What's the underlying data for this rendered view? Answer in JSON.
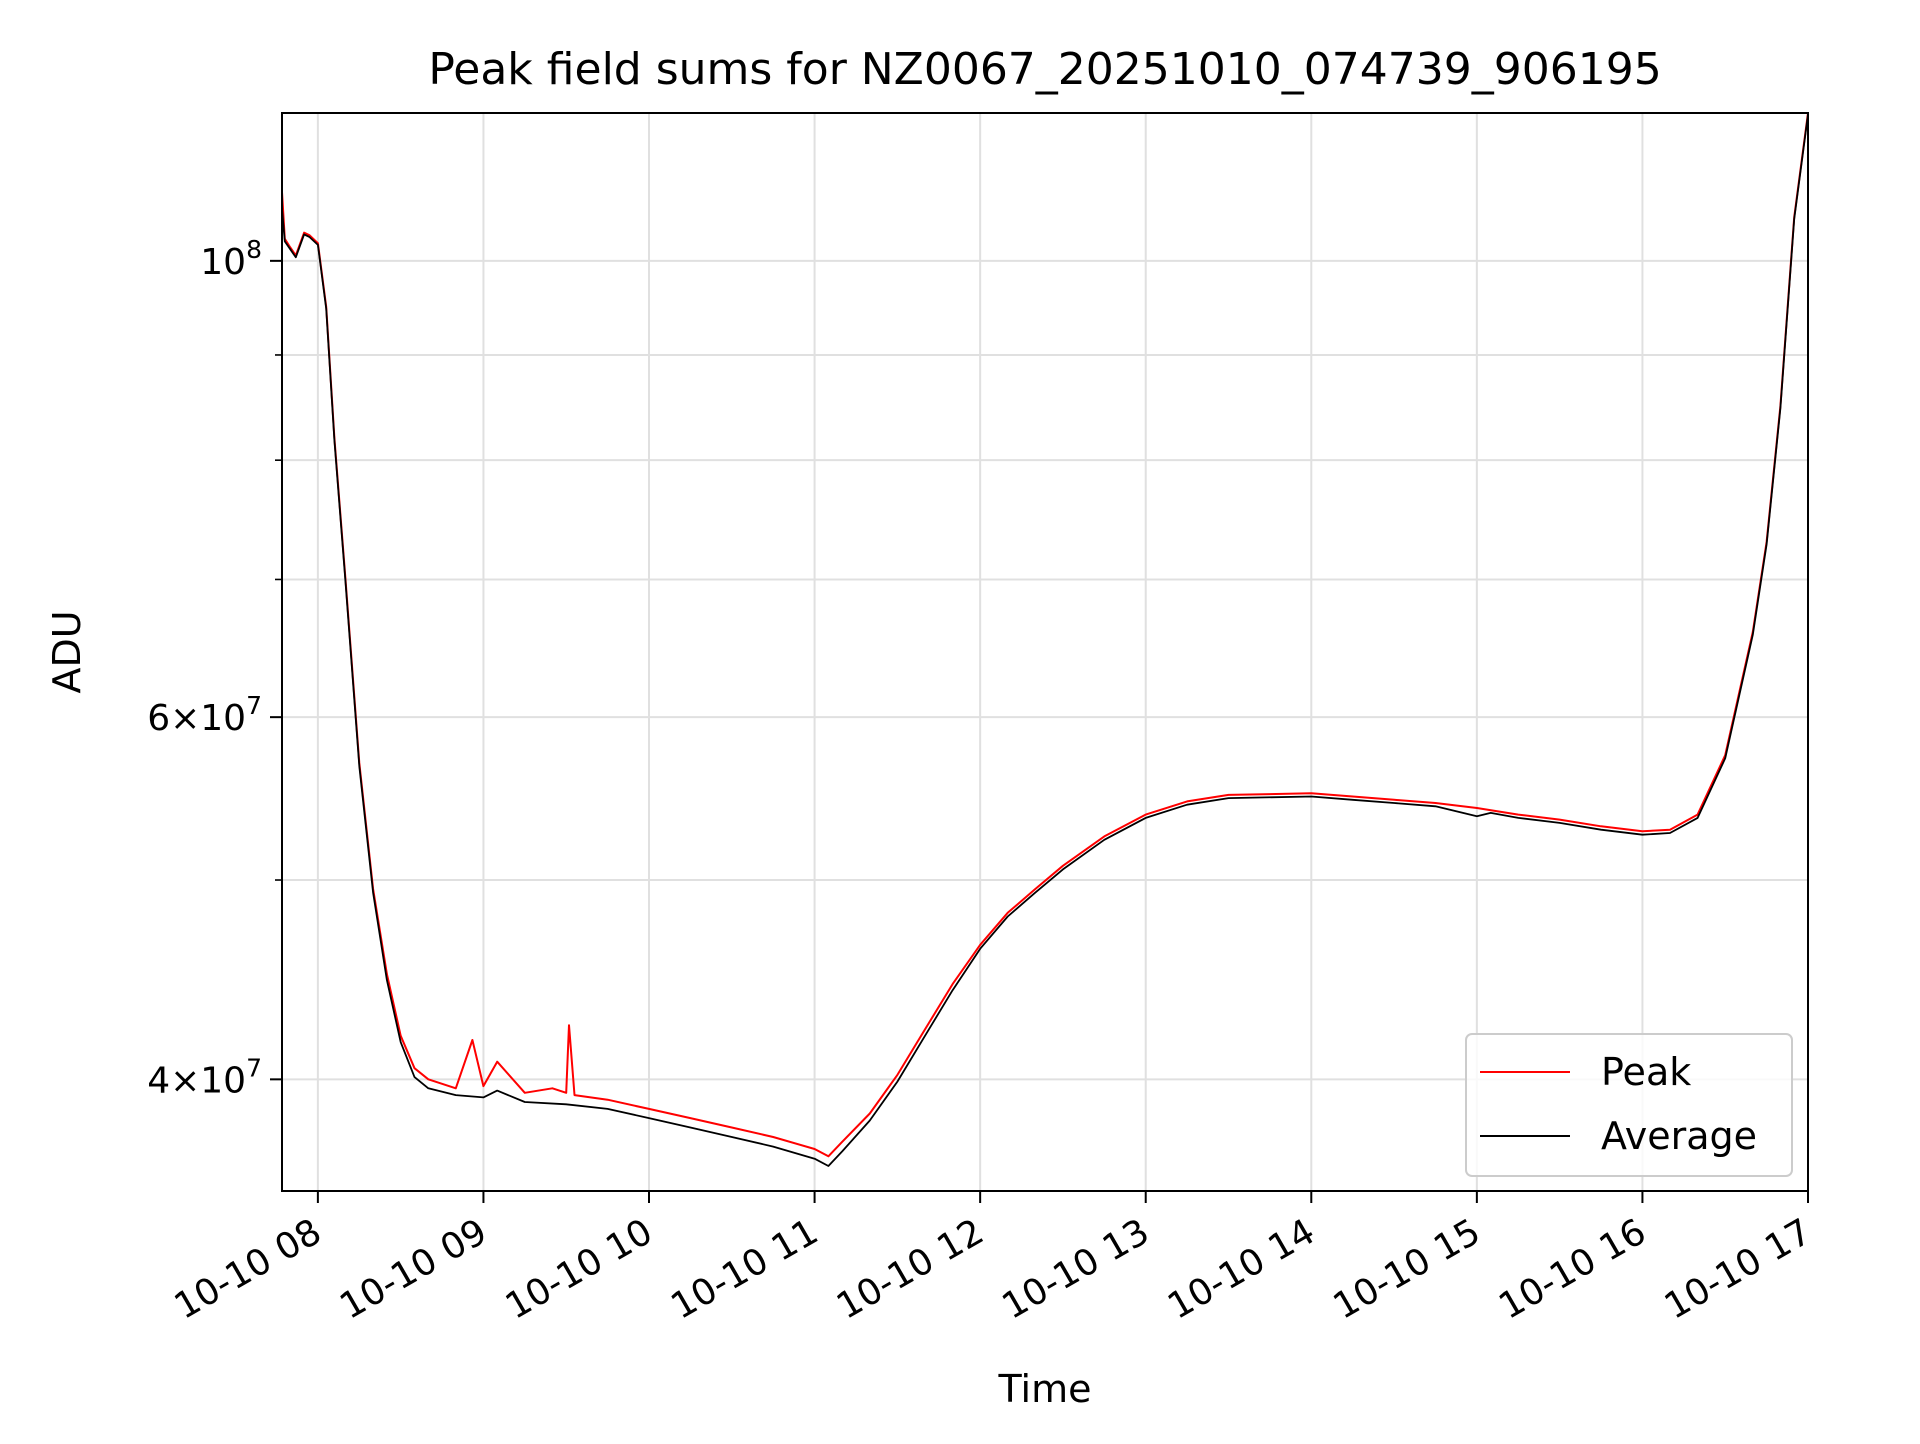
{
  "chart_data": {
    "type": "line",
    "title": "Peak field sums for NZ0067_20251010_074739_906195",
    "xlabel": "Time",
    "ylabel": "ADU",
    "yscale": "log",
    "xlim": [
      "2025-10-10T07:47:00",
      "2025-10-10T17:00:00"
    ],
    "ylim": [
      35300000,
      118000000
    ],
    "x_ticks": [
      {
        "t": "2025-10-10T08:00",
        "label": "10-10 08"
      },
      {
        "t": "2025-10-10T09:00",
        "label": "10-10 09"
      },
      {
        "t": "2025-10-10T10:00",
        "label": "10-10 10"
      },
      {
        "t": "2025-10-10T11:00",
        "label": "10-10 11"
      },
      {
        "t": "2025-10-10T12:00",
        "label": "10-10 12"
      },
      {
        "t": "2025-10-10T13:00",
        "label": "10-10 13"
      },
      {
        "t": "2025-10-10T14:00",
        "label": "10-10 14"
      },
      {
        "t": "2025-10-10T15:00",
        "label": "10-10 15"
      },
      {
        "t": "2025-10-10T16:00",
        "label": "10-10 16"
      },
      {
        "t": "2025-10-10T17:00",
        "label": "10-10 17"
      }
    ],
    "y_major_ticks": [
      {
        "v": 40000000,
        "mant": "4",
        "exp": "7"
      },
      {
        "v": 60000000,
        "mant": "6",
        "exp": "7"
      },
      {
        "v": 100000000,
        "mant": "",
        "exp": "8"
      }
    ],
    "y_minor_ticks": [
      50000000,
      70000000,
      80000000,
      90000000
    ],
    "grid": true,
    "legend_position": "lower-right",
    "series": [
      {
        "name": "Peak",
        "color": "#ff0000",
        "points": [
          [
            "2025-10-10T07:47",
            108000000
          ],
          [
            "2025-10-10T07:48",
            102500000
          ],
          [
            "2025-10-10T07:50",
            101500000
          ],
          [
            "2025-10-10T07:52",
            100600000
          ],
          [
            "2025-10-10T07:55",
            103200000
          ],
          [
            "2025-10-10T07:57",
            102900000
          ],
          [
            "2025-10-10T08:00",
            102000000
          ],
          [
            "2025-10-10T08:03",
            95000000
          ],
          [
            "2025-10-10T08:06",
            82000000
          ],
          [
            "2025-10-10T08:10",
            70000000
          ],
          [
            "2025-10-10T08:15",
            57000000
          ],
          [
            "2025-10-10T08:20",
            49500000
          ],
          [
            "2025-10-10T08:25",
            45000000
          ],
          [
            "2025-10-10T08:30",
            42000000
          ],
          [
            "2025-10-10T08:35",
            40500000
          ],
          [
            "2025-10-10T08:40",
            40000000
          ],
          [
            "2025-10-10T08:50",
            39600000
          ],
          [
            "2025-10-10T08:56",
            41800000
          ],
          [
            "2025-10-10T09:00",
            39700000
          ],
          [
            "2025-10-10T09:05",
            40800000
          ],
          [
            "2025-10-10T09:15",
            39400000
          ],
          [
            "2025-10-10T09:25",
            39600000
          ],
          [
            "2025-10-10T09:30",
            39400000
          ],
          [
            "2025-10-10T09:31",
            42500000
          ],
          [
            "2025-10-10T09:33",
            39300000
          ],
          [
            "2025-10-10T09:45",
            39100000
          ],
          [
            "2025-10-10T10:00",
            38700000
          ],
          [
            "2025-10-10T10:15",
            38300000
          ],
          [
            "2025-10-10T10:30",
            37900000
          ],
          [
            "2025-10-10T10:45",
            37500000
          ],
          [
            "2025-10-10T11:00",
            37000000
          ],
          [
            "2025-10-10T11:05",
            36700000
          ],
          [
            "2025-10-10T11:10",
            37300000
          ],
          [
            "2025-10-10T11:20",
            38500000
          ],
          [
            "2025-10-10T11:30",
            40200000
          ],
          [
            "2025-10-10T11:40",
            42300000
          ],
          [
            "2025-10-10T11:50",
            44500000
          ],
          [
            "2025-10-10T12:00",
            46500000
          ],
          [
            "2025-10-10T12:10",
            48200000
          ],
          [
            "2025-10-10T12:20",
            49500000
          ],
          [
            "2025-10-10T12:30",
            50800000
          ],
          [
            "2025-10-10T12:45",
            52500000
          ],
          [
            "2025-10-10T13:00",
            53800000
          ],
          [
            "2025-10-10T13:15",
            54600000
          ],
          [
            "2025-10-10T13:30",
            55000000
          ],
          [
            "2025-10-10T14:00",
            55100000
          ],
          [
            "2025-10-10T14:15",
            54900000
          ],
          [
            "2025-10-10T14:30",
            54700000
          ],
          [
            "2025-10-10T14:45",
            54500000
          ],
          [
            "2025-10-10T15:00",
            54200000
          ],
          [
            "2025-10-10T15:15",
            53800000
          ],
          [
            "2025-10-10T15:30",
            53500000
          ],
          [
            "2025-10-10T15:45",
            53100000
          ],
          [
            "2025-10-10T16:00",
            52800000
          ],
          [
            "2025-10-10T16:10",
            52900000
          ],
          [
            "2025-10-10T16:20",
            53800000
          ],
          [
            "2025-10-10T16:30",
            57500000
          ],
          [
            "2025-10-10T16:40",
            66000000
          ],
          [
            "2025-10-10T16:45",
            73000000
          ],
          [
            "2025-10-10T16:50",
            85000000
          ],
          [
            "2025-10-10T16:55",
            105000000
          ],
          [
            "2025-10-10T17:00",
            118000000
          ]
        ]
      },
      {
        "name": "Average",
        "color": "#000000",
        "points": [
          [
            "2025-10-10T07:47",
            106000000
          ],
          [
            "2025-10-10T07:48",
            102200000
          ],
          [
            "2025-10-10T07:50",
            101300000
          ],
          [
            "2025-10-10T07:52",
            100400000
          ],
          [
            "2025-10-10T07:55",
            103000000
          ],
          [
            "2025-10-10T07:57",
            102700000
          ],
          [
            "2025-10-10T08:00",
            101800000
          ],
          [
            "2025-10-10T08:03",
            94800000
          ],
          [
            "2025-10-10T08:06",
            81800000
          ],
          [
            "2025-10-10T08:10",
            69800000
          ],
          [
            "2025-10-10T08:15",
            56800000
          ],
          [
            "2025-10-10T08:20",
            49300000
          ],
          [
            "2025-10-10T08:25",
            44700000
          ],
          [
            "2025-10-10T08:30",
            41700000
          ],
          [
            "2025-10-10T08:35",
            40100000
          ],
          [
            "2025-10-10T08:40",
            39600000
          ],
          [
            "2025-10-10T08:50",
            39300000
          ],
          [
            "2025-10-10T09:00",
            39200000
          ],
          [
            "2025-10-10T09:05",
            39500000
          ],
          [
            "2025-10-10T09:15",
            39000000
          ],
          [
            "2025-10-10T09:30",
            38900000
          ],
          [
            "2025-10-10T09:45",
            38700000
          ],
          [
            "2025-10-10T10:00",
            38300000
          ],
          [
            "2025-10-10T10:15",
            37900000
          ],
          [
            "2025-10-10T10:30",
            37500000
          ],
          [
            "2025-10-10T10:45",
            37100000
          ],
          [
            "2025-10-10T11:00",
            36600000
          ],
          [
            "2025-10-10T11:05",
            36300000
          ],
          [
            "2025-10-10T11:10",
            36900000
          ],
          [
            "2025-10-10T11:20",
            38200000
          ],
          [
            "2025-10-10T11:30",
            39900000
          ],
          [
            "2025-10-10T11:40",
            42000000
          ],
          [
            "2025-10-10T11:50",
            44200000
          ],
          [
            "2025-10-10T12:00",
            46300000
          ],
          [
            "2025-10-10T12:10",
            48000000
          ],
          [
            "2025-10-10T12:20",
            49300000
          ],
          [
            "2025-10-10T12:30",
            50600000
          ],
          [
            "2025-10-10T12:45",
            52300000
          ],
          [
            "2025-10-10T13:00",
            53600000
          ],
          [
            "2025-10-10T13:15",
            54400000
          ],
          [
            "2025-10-10T13:30",
            54800000
          ],
          [
            "2025-10-10T14:00",
            54900000
          ],
          [
            "2025-10-10T14:15",
            54700000
          ],
          [
            "2025-10-10T14:30",
            54500000
          ],
          [
            "2025-10-10T14:45",
            54300000
          ],
          [
            "2025-10-10T15:00",
            53700000
          ],
          [
            "2025-10-10T15:05",
            53900000
          ],
          [
            "2025-10-10T15:15",
            53600000
          ],
          [
            "2025-10-10T15:30",
            53300000
          ],
          [
            "2025-10-10T15:45",
            52900000
          ],
          [
            "2025-10-10T16:00",
            52600000
          ],
          [
            "2025-10-10T16:10",
            52700000
          ],
          [
            "2025-10-10T16:20",
            53600000
          ],
          [
            "2025-10-10T16:30",
            57300000
          ],
          [
            "2025-10-10T16:40",
            65800000
          ],
          [
            "2025-10-10T16:45",
            72800000
          ],
          [
            "2025-10-10T16:50",
            84800000
          ],
          [
            "2025-10-10T16:55",
            104800000
          ],
          [
            "2025-10-10T17:00",
            117800000
          ]
        ]
      }
    ]
  }
}
